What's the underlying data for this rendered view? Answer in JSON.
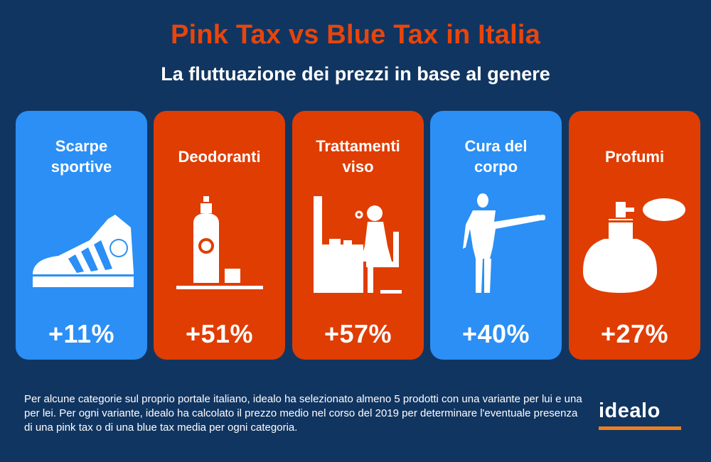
{
  "header": {
    "title": "Pink Tax vs Blue Tax in Italia",
    "subtitle": "La fluttuazione dei prezzi in base al genere"
  },
  "colors": {
    "background": "#113561",
    "blue_card": "#2b8ff5",
    "orange_card": "#e03d02",
    "title_color": "#e8450a",
    "logo_accent": "#f07e19"
  },
  "cards": [
    {
      "label": "Scarpe\nsportive",
      "value": "+11%",
      "color": "#2b8ff5",
      "icon": "sneaker-icon"
    },
    {
      "label": "Deodoranti",
      "value": "+51%",
      "color": "#e03d02",
      "icon": "deodorant-icon"
    },
    {
      "label": "Trattamenti\nviso",
      "value": "+57%",
      "color": "#e03d02",
      "icon": "vanity-icon"
    },
    {
      "label": "Cura del\ncorpo",
      "value": "+40%",
      "color": "#2b8ff5",
      "icon": "body-icon"
    },
    {
      "label": "Profumi",
      "value": "+27%",
      "color": "#e03d02",
      "icon": "perfume-icon"
    }
  ],
  "footnote": "Per alcune categorie sul proprio portale italiano, idealo ha selezionato almeno 5 prodotti con una variante per lui e una per lei. Per ogni variante, idealo ha calcolato il prezzo medio nel corso del 2019 per determinare l'eventuale presenza di una pink tax o di una blue tax media per ogni categoria.",
  "logo": {
    "text": "idealo"
  }
}
